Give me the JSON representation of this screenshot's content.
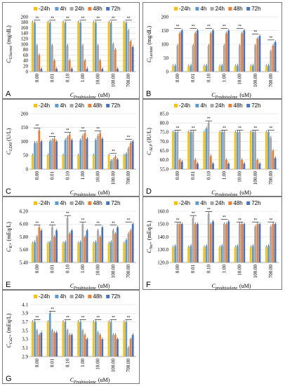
{
  "colors": {
    "-24h": "#ffc000",
    "4h": "#5b9bd5",
    "24h": "#a5a5a5",
    "48h": "#ed7d31",
    "72h": "#4472c4"
  },
  "legend_labels": [
    "-24h",
    "4h",
    "24h",
    "48h",
    "72h"
  ],
  "categories": [
    "0.00",
    "0.01",
    "0.10",
    "1.00",
    "10.00",
    "100.00",
    "700.00"
  ],
  "chart_data": [
    {
      "type": "bar",
      "letter": "A",
      "ylabel_main": "C",
      "ylabel_sub": "Glucose",
      "ylabel_unit": "(mg/dL)",
      "xlabel_main": "C",
      "xlabel_sub": "Prednisolone",
      "xlabel_unit": "(uM)",
      "ylim": [
        0,
        200
      ],
      "yticks": [
        "0",
        "20",
        "40",
        "60",
        "80",
        "100",
        "120",
        "140",
        "160",
        "180",
        "200"
      ],
      "categories": [
        "0.00",
        "0.01",
        "0.10",
        "1.00",
        "10.00",
        "100.00",
        "700.00"
      ],
      "series": [
        {
          "name": "-24h",
          "values": [
            180,
            180,
            180,
            180,
            180,
            180,
            180
          ]
        },
        {
          "name": "4h",
          "values": [
            178,
            178,
            178,
            178,
            178,
            178,
            178
          ]
        },
        {
          "name": "24h",
          "values": [
            95,
            95,
            95,
            95,
            95,
            100,
            150
          ]
        },
        {
          "name": "48h",
          "values": [
            60,
            40,
            40,
            40,
            40,
            80,
            110
          ]
        },
        {
          "name": "72h",
          "values": [
            10,
            10,
            10,
            10,
            10,
            10,
            90
          ]
        }
      ]
    },
    {
      "type": "bar",
      "letter": "B",
      "ylabel_main": "C",
      "ylabel_sub": "Lactate",
      "ylabel_unit": "(mg/dL)",
      "xlabel_main": "C",
      "xlabel_sub": "Prednisolone",
      "xlabel_unit": "(uM)",
      "ylim": [
        0,
        200
      ],
      "yticks": [
        "0",
        "50",
        "100",
        "150",
        "200"
      ],
      "categories": [
        "0.00",
        "0.01",
        "0.10",
        "1.00",
        "10.00",
        "100.00",
        "700.00"
      ],
      "series": [
        {
          "name": "-24h",
          "values": [
            20,
            20,
            20,
            20,
            20,
            20,
            20
          ]
        },
        {
          "name": "4h",
          "values": [
            22,
            22,
            22,
            22,
            22,
            22,
            22
          ]
        },
        {
          "name": "24h",
          "values": [
            95,
            95,
            95,
            95,
            95,
            95,
            75
          ]
        },
        {
          "name": "48h",
          "values": [
            140,
            140,
            140,
            140,
            140,
            120,
            95
          ]
        },
        {
          "name": "72h",
          "values": [
            150,
            150,
            150,
            150,
            150,
            130,
            108
          ]
        }
      ]
    },
    {
      "type": "bar",
      "letter": "C",
      "ylabel_main": "C",
      "ylabel_sub": "LDH",
      "ylabel_unit": "(U/L)",
      "xlabel_main": "C",
      "xlabel_sub": "Prednisolone",
      "xlabel_unit": "(uM)",
      "ylim": [
        0,
        200
      ],
      "yticks": [
        "0",
        "50",
        "100",
        "150",
        "200"
      ],
      "categories": [
        "0.00",
        "0.01",
        "0.10",
        "1.00",
        "10.00",
        "100.00",
        "700.00"
      ],
      "series": [
        {
          "name": "-24h",
          "values": [
            50,
            50,
            50,
            50,
            50,
            50,
            50
          ]
        },
        {
          "name": "4h",
          "values": [
            95,
            100,
            105,
            105,
            105,
            30,
            55
          ]
        },
        {
          "name": "24h",
          "values": [
            95,
            105,
            115,
            120,
            120,
            35,
            75
          ]
        },
        {
          "name": "48h",
          "values": [
            140,
            110,
            125,
            130,
            130,
            45,
            95
          ]
        },
        {
          "name": "72h",
          "values": [
            100,
            100,
            105,
            110,
            110,
            35,
            100
          ]
        }
      ]
    },
    {
      "type": "bar",
      "letter": "D",
      "ylabel_main": "C",
      "ylabel_sub": "ALP",
      "ylabel_unit": "(IU/L)",
      "xlabel_main": "C",
      "xlabel_sub": "Prednisolone",
      "xlabel_unit": "(uM)",
      "ylim": [
        55,
        85
      ],
      "yticks": [
        "55.0",
        "60.0",
        "65.0",
        "70.0",
        "75.0",
        "80.0",
        "85.0"
      ],
      "categories": [
        "0.00",
        "0.01",
        "0.10",
        "1.00",
        "10.00",
        "100.00",
        "700.00"
      ],
      "series": [
        {
          "name": "-24h",
          "values": [
            75,
            75,
            75,
            75,
            75,
            75,
            75
          ]
        },
        {
          "name": "4h",
          "values": [
            75,
            75,
            77,
            75,
            75,
            75,
            75
          ]
        },
        {
          "name": "24h",
          "values": [
            75,
            75,
            80,
            75,
            75,
            75,
            72
          ]
        },
        {
          "name": "48h",
          "values": [
            60,
            60,
            62,
            60,
            60,
            60,
            65
          ]
        },
        {
          "name": "72h",
          "values": [
            59,
            58,
            58,
            58,
            58,
            58,
            61
          ]
        }
      ]
    },
    {
      "type": "bar",
      "letter": "E",
      "ylabel_main": "C",
      "ylabel_sub": "K+",
      "ylabel_unit": "(mEq/L)",
      "xlabel_main": "C",
      "xlabel_sub": "Prednisolone",
      "xlabel_unit": "(uM)",
      "ylim": [
        5.4,
        6.2
      ],
      "yticks": [
        "5.40",
        "5.60",
        "5.80",
        "6.00",
        "6.20"
      ],
      "categories": [
        "0.00",
        "0.01",
        "0.10",
        "1.00",
        "10.00",
        "100.00",
        "700.00"
      ],
      "series": [
        {
          "name": "-24h",
          "values": [
            5.7,
            5.7,
            5.7,
            5.7,
            5.7,
            5.7,
            5.7
          ]
        },
        {
          "name": "4h",
          "values": [
            5.72,
            5.72,
            5.72,
            5.72,
            5.72,
            5.72,
            5.75
          ]
        },
        {
          "name": "24h",
          "values": [
            5.8,
            5.95,
            6.1,
            6.0,
            5.9,
            5.9,
            5.85
          ]
        },
        {
          "name": "48h",
          "values": [
            5.95,
            5.8,
            5.85,
            5.8,
            5.8,
            5.85,
            5.9
          ]
        },
        {
          "name": "72h",
          "values": [
            5.9,
            5.9,
            5.9,
            5.9,
            5.95,
            5.95,
            6.0
          ]
        }
      ]
    },
    {
      "type": "bar",
      "letter": "F",
      "ylabel_main": "C",
      "ylabel_sub": "Na+",
      "ylabel_unit": "(mEq/L)",
      "xlabel_main": "C",
      "xlabel_sub": "prednisolone",
      "xlabel_unit": "(uM)",
      "ylim": [
        120,
        160
      ],
      "yticks": [
        "120.0",
        "130.0",
        "140.0",
        "150.0",
        "160.0"
      ],
      "categories": [
        "0.00",
        "0.01",
        "0.10",
        "1.00",
        "10.00",
        "100.00",
        "700.00"
      ],
      "series": [
        {
          "name": "-24h",
          "values": [
            132,
            132,
            132,
            132,
            132,
            132,
            132
          ]
        },
        {
          "name": "4h",
          "values": [
            133,
            133,
            133,
            133,
            133,
            133,
            133
          ]
        },
        {
          "name": "24h",
          "values": [
            150,
            155,
            158,
            150,
            150,
            148,
            148
          ]
        },
        {
          "name": "48h",
          "values": [
            150,
            150,
            150,
            150,
            150,
            150,
            150
          ]
        },
        {
          "name": "72h",
          "values": [
            150,
            150,
            152,
            152,
            150,
            150,
            150
          ]
        }
      ]
    },
    {
      "type": "bar",
      "letter": "G",
      "ylabel_main": "C",
      "ylabel_sub": "Ca2+",
      "ylabel_unit": "(mEq/L)",
      "xlabel_main": "C",
      "xlabel_sub": "Prednisolone",
      "xlabel_unit": "(uM)",
      "ylim": [
        2.9,
        4.1
      ],
      "yticks": [
        "2.9",
        "3.1",
        "3.3",
        "3.5",
        "3.7",
        "3.9",
        "4.1"
      ],
      "categories": [
        "0.00",
        "0.01",
        "0.10",
        "1.00",
        "10.00",
        "100.00",
        "700.00"
      ],
      "series": [
        {
          "name": "-24h",
          "values": [
            3.7,
            3.7,
            3.7,
            3.7,
            3.7,
            3.7,
            3.7
          ]
        },
        {
          "name": "4h",
          "values": [
            3.7,
            3.9,
            3.7,
            3.7,
            3.7,
            3.7,
            3.7
          ]
        },
        {
          "name": "24h",
          "values": [
            3.5,
            3.5,
            3.5,
            3.5,
            3.45,
            3.4,
            3.1
          ]
        },
        {
          "name": "48h",
          "values": [
            3.4,
            3.45,
            3.4,
            3.4,
            3.4,
            3.4,
            3.3
          ]
        },
        {
          "name": "72h",
          "values": [
            3.45,
            3.45,
            3.4,
            3.3,
            3.3,
            3.3,
            3.4
          ]
        }
      ]
    }
  ]
}
